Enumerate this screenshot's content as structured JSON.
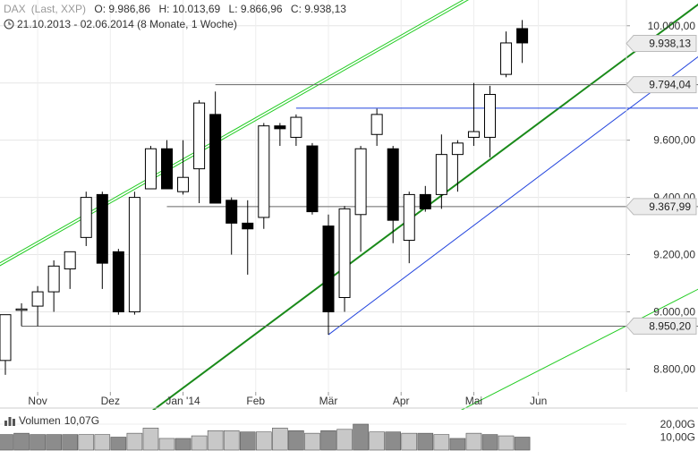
{
  "header": {
    "instrument": "DAX",
    "source": "(Last, XXP)",
    "open": "O: 9.986,86",
    "high": "H: 10.013,69",
    "low": "L: 9.866,96",
    "close": "C: 9.938,13",
    "period": "21.10.2013 - 02.06.2014 (8 Monate, 1 Woche)"
  },
  "volume_panel": {
    "label": "Volumen",
    "value": "10,07G",
    "axis_ticks": [
      "20,00G",
      "10,00G"
    ],
    "axis_values": [
      20,
      10
    ]
  },
  "colors": {
    "up_candle_fill": "#ffffff",
    "down_candle_fill": "#000000",
    "candle_outline": "#000000",
    "long_channel": "#22cc22",
    "trend_dark_green": "#1a8a1a",
    "trend_blue": "#2244dd",
    "horizontal_gray": "#666666",
    "volume_gray": "#c8c8c8",
    "volume_dark": "#8c8c8c"
  },
  "chart_data": {
    "type": "candlestick",
    "x_tick_labels": [
      "Nov",
      "Dez",
      "Jan '14",
      "Feb",
      "Mär",
      "Apr",
      "Mai",
      "Jun"
    ],
    "x_tick_positions": [
      2,
      6.5,
      11,
      15.5,
      20,
      24.5,
      29,
      33
    ],
    "y_ticks": [
      8800,
      9000,
      9200,
      9400,
      9600,
      9800,
      10000
    ],
    "y_tick_labels": [
      "8.800,00",
      "9.000,00",
      "9.200,00",
      "9.400,00",
      "9.600,00",
      "9.800,00",
      "10.000,00"
    ],
    "ylim": [
      8720,
      10090
    ],
    "price_labels": [
      {
        "value": 9938.13,
        "text": "9.938,13"
      },
      {
        "value": 9794.04,
        "text": "9.794,04"
      },
      {
        "value": 9367.99,
        "text": "9.367,99"
      },
      {
        "value": 8950.2,
        "text": "8.950,20"
      }
    ],
    "candles": [
      {
        "o": 8830,
        "h": 8990,
        "l": 8780,
        "c": 8990
      },
      {
        "o": 9010,
        "h": 9030,
        "l": 8950,
        "c": 9010
      },
      {
        "o": 9020,
        "h": 9090,
        "l": 8950,
        "c": 9070
      },
      {
        "o": 9070,
        "h": 9180,
        "l": 9000,
        "c": 9160
      },
      {
        "o": 9150,
        "h": 9210,
        "l": 9080,
        "c": 9210
      },
      {
        "o": 9260,
        "h": 9420,
        "l": 9230,
        "c": 9400
      },
      {
        "o": 9410,
        "h": 9420,
        "l": 9080,
        "c": 9170
      },
      {
        "o": 9210,
        "h": 9220,
        "l": 8990,
        "c": 9000
      },
      {
        "o": 9000,
        "h": 9420,
        "l": 8990,
        "c": 9400
      },
      {
        "o": 9430,
        "h": 9580,
        "l": 9430,
        "c": 9570
      },
      {
        "o": 9570,
        "h": 9600,
        "l": 9430,
        "c": 9430
      },
      {
        "o": 9420,
        "h": 9600,
        "l": 9410,
        "c": 9470
      },
      {
        "o": 9500,
        "h": 9740,
        "l": 9380,
        "c": 9730
      },
      {
        "o": 9690,
        "h": 9770,
        "l": 9390,
        "c": 9380
      },
      {
        "o": 9390,
        "h": 9400,
        "l": 9200,
        "c": 9310
      },
      {
        "o": 9310,
        "h": 9390,
        "l": 9130,
        "c": 9290
      },
      {
        "o": 9330,
        "h": 9660,
        "l": 9290,
        "c": 9650
      },
      {
        "o": 9650,
        "h": 9660,
        "l": 9580,
        "c": 9640
      },
      {
        "o": 9610,
        "h": 9690,
        "l": 9580,
        "c": 9680
      },
      {
        "o": 9580,
        "h": 9590,
        "l": 9340,
        "c": 9350
      },
      {
        "o": 9300,
        "h": 9340,
        "l": 8920,
        "c": 9000
      },
      {
        "o": 9050,
        "h": 9370,
        "l": 9000,
        "c": 9360
      },
      {
        "o": 9340,
        "h": 9580,
        "l": 9210,
        "c": 9570
      },
      {
        "o": 9620,
        "h": 9710,
        "l": 9580,
        "c": 9690
      },
      {
        "o": 9570,
        "h": 9580,
        "l": 9240,
        "c": 9320
      },
      {
        "o": 9250,
        "h": 9420,
        "l": 9170,
        "c": 9410
      },
      {
        "o": 9410,
        "h": 9440,
        "l": 9350,
        "c": 9360
      },
      {
        "o": 9410,
        "h": 9620,
        "l": 9360,
        "c": 9550
      },
      {
        "o": 9550,
        "h": 9600,
        "l": 9420,
        "c": 9590
      },
      {
        "o": 9610,
        "h": 9800,
        "l": 9580,
        "c": 9630
      },
      {
        "o": 9610,
        "h": 9790,
        "l": 9540,
        "c": 9760
      },
      {
        "o": 9830,
        "h": 9980,
        "l": 9820,
        "c": 9940
      },
      {
        "o": 9990,
        "h": 10020,
        "l": 9870,
        "c": 9940
      }
    ],
    "volumes": [
      12,
      13,
      12,
      12,
      12,
      12,
      12,
      10,
      13,
      17,
      9,
      9,
      11,
      15,
      15,
      14,
      14,
      17,
      15,
      13,
      15,
      16,
      20,
      14,
      14,
      13,
      13,
      12,
      9,
      13,
      12,
      11,
      10
    ],
    "volume_dark_bars": [
      0,
      1,
      2,
      3,
      4,
      7,
      11,
      15,
      18,
      20,
      22,
      24,
      26,
      28,
      30,
      32
    ],
    "trendlines": [
      {
        "name": "upper-channel-1",
        "color": "long_channel",
        "x1": -1,
        "y1": 9150,
        "x2": 38,
        "y2": 10400
      },
      {
        "name": "upper-channel-2",
        "color": "long_channel",
        "x1": -1,
        "y1": 9140,
        "x2": 38,
        "y2": 10390
      },
      {
        "name": "lower-channel",
        "color": "long_channel",
        "x1": 28,
        "y1": 8650,
        "x2": 45,
        "y2": 9140
      },
      {
        "name": "dark-green-trend",
        "color": "trend_dark_green",
        "x1": 9,
        "y1": 8650,
        "x2": 43.5,
        "y2": 10100
      },
      {
        "name": "blue-trend",
        "color": "trend_blue",
        "x1": 20,
        "y1": 8920,
        "x2": 44.5,
        "y2": 9960
      },
      {
        "name": "blue-resistance",
        "color": "trend_blue",
        "x1": 18,
        "y1": 9712,
        "x2": 44.5,
        "y2": 9712
      },
      {
        "name": "gray-9794",
        "color": "horizontal_gray",
        "x1": 13,
        "y1": 9794,
        "x2": 44.5,
        "y2": 9794
      },
      {
        "name": "gray-9368",
        "color": "horizontal_gray",
        "x1": 10,
        "y1": 9368,
        "x2": 44.5,
        "y2": 9368
      },
      {
        "name": "gray-8950",
        "color": "horizontal_gray",
        "x1": 1,
        "y1": 8950,
        "x2": 44.5,
        "y2": 8950
      }
    ]
  }
}
